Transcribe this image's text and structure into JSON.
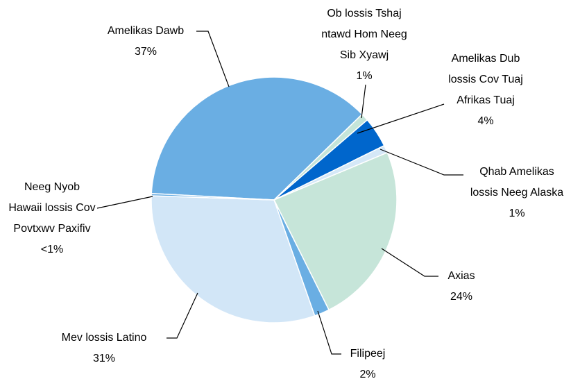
{
  "chart_data": {
    "type": "pie",
    "categories": [
      [
        "Amelikas Dawb"
      ],
      [
        "Ob lossis Tshaj",
        "ntawd Hom Neeg",
        "Sib Xyawj"
      ],
      [
        "Amelikas Dub",
        "lossis Cov Tuaj",
        "Afrikas Tuaj"
      ],
      [
        "Qhab Amelikas",
        "lossis Neeg Alaska"
      ],
      [
        "Axias"
      ],
      [
        "Filipeej"
      ],
      [
        "Mev lossis Latino"
      ],
      [
        "Neeg Nyob",
        "Hawaii lossis Cov",
        "Povtxwv Paxifiv"
      ]
    ],
    "values": [
      37,
      1,
      4,
      1,
      24,
      2,
      31,
      0.3
    ],
    "value_labels": [
      "37%",
      "1%",
      "4%",
      "1%",
      "24%",
      "2%",
      "31%",
      "<1%"
    ],
    "colors": [
      "#6aaee3",
      "#c5e5d9",
      "#0066cc",
      "#d5e8f7",
      "#c6e5d9",
      "#6aaee3",
      "#d2e6f7",
      "#6aaee3"
    ]
  }
}
